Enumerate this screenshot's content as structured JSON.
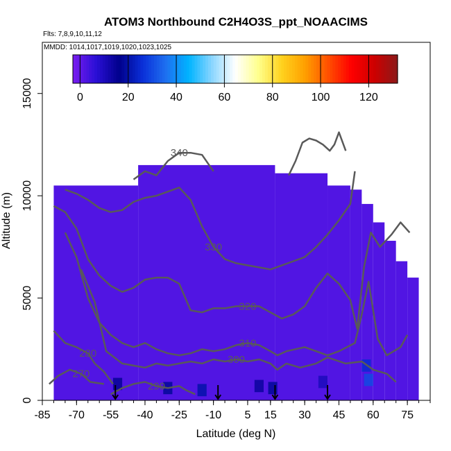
{
  "chart_data": {
    "type": "heatmap",
    "title": "ATOM3 Northbound C2H4O3S_ppt_NOAACIMS",
    "flights_label": "Flts: 7,8,9,10,11,12",
    "dates_label": "MMDD: 1014,1017,1019,1020,1023,1025",
    "xlabel": "Latitude (deg N)",
    "ylabel": "Altitude (m)",
    "xlim": [
      -85,
      85
    ],
    "ylim": [
      0,
      17500
    ],
    "x_ticks": [
      -85,
      -70,
      -55,
      -40,
      -25,
      -10,
      5,
      15,
      30,
      45,
      60,
      75
    ],
    "y_ticks": [
      0,
      5000,
      10000,
      15000
    ],
    "colorbar": {
      "range": [
        -3,
        132
      ],
      "ticks": [
        0,
        20,
        40,
        60,
        80,
        100,
        120
      ],
      "colors": [
        "#7a1cf0",
        "#2a0fd6",
        "#00008b",
        "#0a2fd8",
        "#1e6ff0",
        "#00b4ff",
        "#8ad6ff",
        "#ffffff",
        "#ffff8c",
        "#ffd21e",
        "#ffa000",
        "#ff5000",
        "#ff0000",
        "#cd0000",
        "#8b1a1a"
      ]
    },
    "grid_cell_value": 2,
    "grid_coverage": [
      {
        "lat_min": -80,
        "lat_max": -43,
        "alt_top": 10500
      },
      {
        "lat_min": -43,
        "lat_max": 17,
        "alt_top": 11500
      },
      {
        "lat_min": 17,
        "lat_max": 40,
        "alt_top": 11100
      },
      {
        "lat_min": 40,
        "lat_max": 50,
        "alt_top": 10500
      },
      {
        "lat_min": 50,
        "lat_max": 55,
        "alt_top": 10300
      },
      {
        "lat_min": 55,
        "lat_max": 60,
        "alt_top": 9600
      },
      {
        "lat_min": 60,
        "lat_max": 65,
        "alt_top": 8700
      },
      {
        "lat_min": 65,
        "lat_max": 70,
        "alt_top": 7800
      },
      {
        "lat_min": 70,
        "lat_max": 75,
        "alt_top": 6800
      },
      {
        "lat_min": 75,
        "lat_max": 80,
        "alt_top": 6000
      }
    ],
    "high_value_patches": [
      {
        "lat": -52,
        "alt": 800,
        "value": 15
      },
      {
        "lat": -30,
        "alt": 600,
        "value": 18
      },
      {
        "lat": -15,
        "alt": 500,
        "value": 20
      },
      {
        "lat": 10,
        "alt": 700,
        "value": 14
      },
      {
        "lat": 16,
        "alt": 600,
        "value": 18
      },
      {
        "lat": 38,
        "alt": 900,
        "value": 10
      },
      {
        "lat": 57,
        "alt": 1700,
        "value": 25
      },
      {
        "lat": 58,
        "alt": 1000,
        "value": 30
      }
    ],
    "theta_contours": [
      {
        "label": "270",
        "points": [
          [
            -82,
            800
          ],
          [
            -78,
            1200
          ],
          [
            -73,
            1500
          ],
          [
            -68,
            1300
          ],
          [
            -64,
            900
          ],
          [
            -58,
            800
          ]
        ]
      },
      {
        "label": "280",
        "points": [
          [
            -80,
            3400
          ],
          [
            -75,
            2800
          ],
          [
            -70,
            2600
          ],
          [
            -65,
            2300
          ],
          [
            -62,
            1800
          ],
          [
            -58,
            1400
          ],
          [
            -54,
            800
          ]
        ]
      },
      {
        "label": "290",
        "points": [
          [
            -55,
            300
          ],
          [
            -50,
            600
          ],
          [
            -45,
            800
          ],
          [
            -40,
            900
          ],
          [
            -35,
            700
          ],
          [
            -30,
            600
          ],
          [
            -25,
            700
          ],
          [
            -22,
            500
          ],
          [
            -18,
            300
          ]
        ]
      },
      {
        "label": "300",
        "points": [
          [
            -68,
            6400
          ],
          [
            -62,
            4800
          ],
          [
            -57,
            2400
          ],
          [
            -50,
            1800
          ],
          [
            -45,
            1700
          ],
          [
            -40,
            1600
          ],
          [
            -35,
            1800
          ],
          [
            -30,
            1700
          ],
          [
            -25,
            1800
          ],
          [
            -20,
            1900
          ],
          [
            -15,
            1800
          ],
          [
            -10,
            2000
          ],
          [
            -5,
            1900
          ],
          [
            0,
            2000
          ],
          [
            5,
            1900
          ],
          [
            10,
            2000
          ],
          [
            15,
            1800
          ],
          [
            18,
            1500
          ],
          [
            22,
            1800
          ],
          [
            28,
            1600
          ],
          [
            35,
            1800
          ],
          [
            40,
            2100
          ],
          [
            48,
            1800
          ],
          [
            55,
            1900
          ],
          [
            60,
            1500
          ],
          [
            66,
            1300
          ],
          [
            70,
            900
          ]
        ]
      },
      {
        "label": "310",
        "points": [
          [
            -75,
            8200
          ],
          [
            -70,
            7000
          ],
          [
            -65,
            5000
          ],
          [
            -60,
            3800
          ],
          [
            -55,
            3200
          ],
          [
            -50,
            2800
          ],
          [
            -45,
            2600
          ],
          [
            -40,
            2800
          ],
          [
            -35,
            2500
          ],
          [
            -30,
            2300
          ],
          [
            -25,
            2200
          ],
          [
            -20,
            2300
          ],
          [
            -15,
            2500
          ],
          [
            -10,
            2400
          ],
          [
            -5,
            2500
          ],
          [
            0,
            2700
          ],
          [
            5,
            2800
          ],
          [
            10,
            2700
          ],
          [
            15,
            2400
          ],
          [
            18,
            2200
          ],
          [
            22,
            2400
          ],
          [
            30,
            2600
          ],
          [
            35,
            2400
          ],
          [
            40,
            2200
          ],
          [
            45,
            2400
          ],
          [
            52,
            2800
          ],
          [
            55,
            4200
          ],
          [
            58,
            5800
          ],
          [
            62,
            3000
          ],
          [
            66,
            2200
          ],
          [
            72,
            2600
          ],
          [
            75,
            3200
          ]
        ]
      },
      {
        "label": "320",
        "points": [
          [
            -80,
            9500
          ],
          [
            -75,
            9200
          ],
          [
            -70,
            8400
          ],
          [
            -65,
            6900
          ],
          [
            -60,
            6100
          ],
          [
            -55,
            5600
          ],
          [
            -50,
            5300
          ],
          [
            -45,
            5500
          ],
          [
            -40,
            5900
          ],
          [
            -35,
            6000
          ],
          [
            -30,
            6000
          ],
          [
            -25,
            5700
          ],
          [
            -20,
            4400
          ],
          [
            -15,
            4300
          ],
          [
            -10,
            4500
          ],
          [
            -5,
            4500
          ],
          [
            0,
            4600
          ],
          [
            5,
            4600
          ],
          [
            10,
            4600
          ],
          [
            15,
            4300
          ],
          [
            20,
            4000
          ],
          [
            25,
            4200
          ],
          [
            30,
            4600
          ],
          [
            35,
            5500
          ],
          [
            40,
            6200
          ],
          [
            45,
            5700
          ],
          [
            50,
            4900
          ],
          [
            53,
            3500
          ],
          [
            56,
            6500
          ],
          [
            59,
            8200
          ],
          [
            63,
            7500
          ],
          [
            68,
            8100
          ],
          [
            72,
            8700
          ],
          [
            76,
            8200
          ]
        ]
      },
      {
        "label": "330",
        "points": [
          [
            -75,
            10300
          ],
          [
            -70,
            10100
          ],
          [
            -65,
            9800
          ],
          [
            -60,
            9400
          ],
          [
            -55,
            9200
          ],
          [
            -50,
            9300
          ],
          [
            -45,
            9700
          ],
          [
            -40,
            9900
          ],
          [
            -35,
            10000
          ],
          [
            -30,
            10200
          ],
          [
            -25,
            10400
          ],
          [
            -20,
            9800
          ],
          [
            -15,
            8500
          ],
          [
            -10,
            7500
          ],
          [
            -5,
            6900
          ],
          [
            0,
            6700
          ],
          [
            5,
            6600
          ],
          [
            10,
            6500
          ],
          [
            15,
            6400
          ],
          [
            20,
            6600
          ],
          [
            25,
            6800
          ],
          [
            30,
            7000
          ],
          [
            35,
            7500
          ],
          [
            40,
            8100
          ],
          [
            45,
            8800
          ],
          [
            50,
            9600
          ],
          [
            52,
            11200
          ]
        ]
      },
      {
        "label": "340",
        "points": [
          [
            -45,
            10800
          ],
          [
            -40,
            11200
          ],
          [
            -35,
            11000
          ],
          [
            -30,
            11700
          ],
          [
            -25,
            12100
          ],
          [
            -20,
            12100
          ],
          [
            -15,
            12000
          ],
          [
            -10,
            11200
          ]
        ]
      },
      {
        "label": "",
        "points": [
          [
            23,
            11000
          ],
          [
            26,
            11700
          ],
          [
            29,
            12600
          ],
          [
            32,
            12800
          ],
          [
            35,
            12700
          ],
          [
            38,
            12500
          ],
          [
            41,
            12200
          ],
          [
            43,
            12500
          ],
          [
            45,
            13100
          ],
          [
            48,
            12200
          ]
        ]
      }
    ],
    "flight_markers_lat": [
      -53,
      -8,
      17,
      40
    ]
  }
}
